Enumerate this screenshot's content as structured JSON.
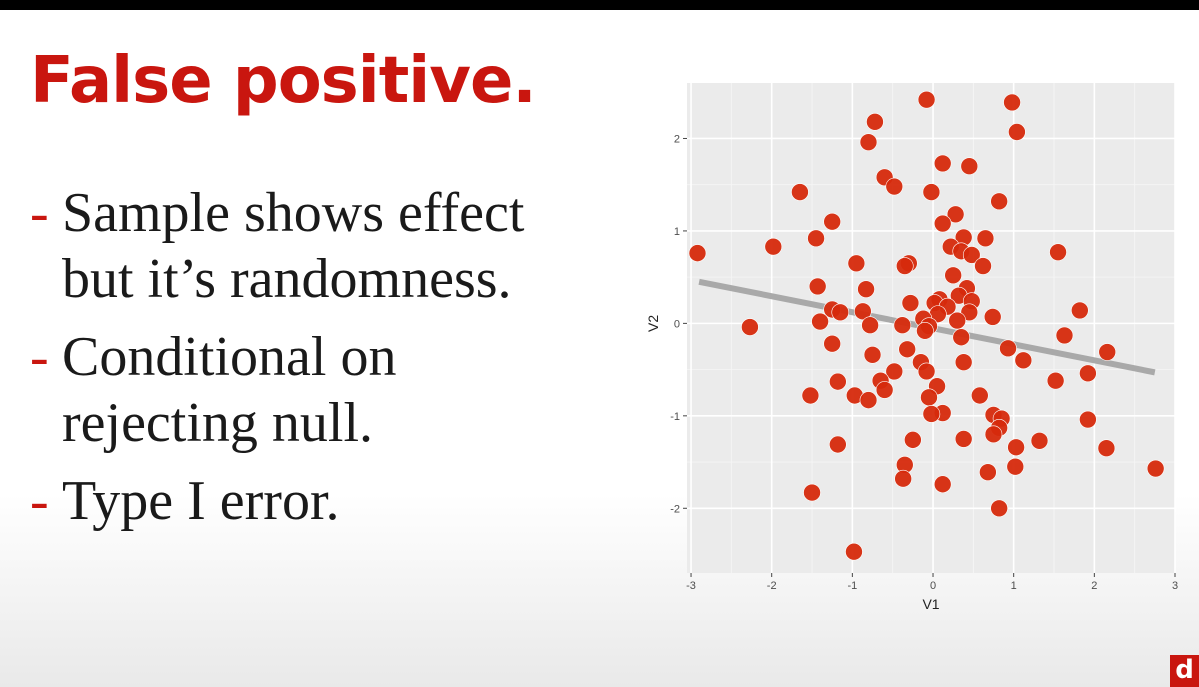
{
  "slide": {
    "title": "False positive.",
    "bullets": [
      {
        "dash": "-",
        "text": "Sample shows effect\nbut it’s randomness."
      },
      {
        "dash": "-",
        "text": "Conditional on\nrejecting null."
      },
      {
        "dash": "-",
        "text": "Type I error."
      }
    ],
    "logo_text": "d",
    "colors": {
      "title": "#c9160f",
      "dash": "#c9160f",
      "point": "#d62a0c",
      "trend": "#a9a9a9",
      "panel": "#ebebeb"
    }
  },
  "chart_data": {
    "type": "scatter",
    "title": "",
    "xlabel": "V1",
    "ylabel": "V2",
    "xlim": [
      -3.05,
      3.0
    ],
    "ylim": [
      -2.7,
      2.6
    ],
    "xticks": [
      -3,
      -2,
      -1,
      0,
      1,
      2,
      3
    ],
    "yticks": [
      -2,
      -1,
      0,
      1,
      2
    ],
    "grid": true,
    "trend_line": {
      "x": [
        -2.9,
        2.75
      ],
      "y": [
        0.45,
        -0.53
      ]
    },
    "points": [
      {
        "x": -0.08,
        "y": 2.42
      },
      {
        "x": 0.98,
        "y": 2.39
      },
      {
        "x": -0.72,
        "y": 2.18
      },
      {
        "x": 1.04,
        "y": 2.07
      },
      {
        "x": -0.8,
        "y": 1.96
      },
      {
        "x": 0.12,
        "y": 1.73
      },
      {
        "x": 0.45,
        "y": 1.7
      },
      {
        "x": -0.6,
        "y": 1.58
      },
      {
        "x": -0.48,
        "y": 1.48
      },
      {
        "x": -1.65,
        "y": 1.42
      },
      {
        "x": -0.02,
        "y": 1.42
      },
      {
        "x": 0.82,
        "y": 1.32
      },
      {
        "x": 0.28,
        "y": 1.18
      },
      {
        "x": -1.25,
        "y": 1.1
      },
      {
        "x": 0.12,
        "y": 1.08
      },
      {
        "x": -1.45,
        "y": 0.92
      },
      {
        "x": 0.38,
        "y": 0.93
      },
      {
        "x": 0.65,
        "y": 0.92
      },
      {
        "x": 0.22,
        "y": 0.83
      },
      {
        "x": -1.98,
        "y": 0.83
      },
      {
        "x": 0.35,
        "y": 0.78
      },
      {
        "x": -2.92,
        "y": 0.76
      },
      {
        "x": 1.55,
        "y": 0.77
      },
      {
        "x": 0.48,
        "y": 0.74
      },
      {
        "x": -0.95,
        "y": 0.65
      },
      {
        "x": -0.3,
        "y": 0.65
      },
      {
        "x": -0.35,
        "y": 0.62
      },
      {
        "x": 0.62,
        "y": 0.62
      },
      {
        "x": 0.25,
        "y": 0.52
      },
      {
        "x": -1.43,
        "y": 0.4
      },
      {
        "x": -0.83,
        "y": 0.37
      },
      {
        "x": 0.42,
        "y": 0.38
      },
      {
        "x": 0.32,
        "y": 0.3
      },
      {
        "x": 0.08,
        "y": 0.26
      },
      {
        "x": 0.48,
        "y": 0.24
      },
      {
        "x": -0.28,
        "y": 0.22
      },
      {
        "x": 0.02,
        "y": 0.22
      },
      {
        "x": 0.18,
        "y": 0.18
      },
      {
        "x": -1.25,
        "y": 0.15
      },
      {
        "x": -0.87,
        "y": 0.13
      },
      {
        "x": -1.15,
        "y": 0.12
      },
      {
        "x": 0.45,
        "y": 0.12
      },
      {
        "x": 1.82,
        "y": 0.14
      },
      {
        "x": 0.06,
        "y": 0.1
      },
      {
        "x": 0.74,
        "y": 0.07
      },
      {
        "x": -0.12,
        "y": 0.05
      },
      {
        "x": 0.3,
        "y": 0.03
      },
      {
        "x": -1.4,
        "y": 0.02
      },
      {
        "x": -0.78,
        "y": -0.02
      },
      {
        "x": -0.38,
        "y": -0.02
      },
      {
        "x": -0.05,
        "y": -0.03
      },
      {
        "x": -2.27,
        "y": -0.04
      },
      {
        "x": -0.1,
        "y": -0.08
      },
      {
        "x": 0.35,
        "y": -0.15
      },
      {
        "x": 1.63,
        "y": -0.13
      },
      {
        "x": -1.25,
        "y": -0.22
      },
      {
        "x": 0.93,
        "y": -0.27
      },
      {
        "x": -0.32,
        "y": -0.28
      },
      {
        "x": 2.16,
        "y": -0.31
      },
      {
        "x": -0.75,
        "y": -0.34
      },
      {
        "x": 1.12,
        "y": -0.4
      },
      {
        "x": 0.38,
        "y": -0.42
      },
      {
        "x": -0.15,
        "y": -0.42
      },
      {
        "x": -0.48,
        "y": -0.52
      },
      {
        "x": -0.08,
        "y": -0.52
      },
      {
        "x": 1.92,
        "y": -0.54
      },
      {
        "x": -1.18,
        "y": -0.63
      },
      {
        "x": -0.65,
        "y": -0.62
      },
      {
        "x": 1.52,
        "y": -0.62
      },
      {
        "x": 0.05,
        "y": -0.68
      },
      {
        "x": -0.6,
        "y": -0.72
      },
      {
        "x": -1.52,
        "y": -0.78
      },
      {
        "x": 0.58,
        "y": -0.78
      },
      {
        "x": -0.97,
        "y": -0.78
      },
      {
        "x": -0.8,
        "y": -0.83
      },
      {
        "x": -0.05,
        "y": -0.8
      },
      {
        "x": 0.12,
        "y": -0.97
      },
      {
        "x": 0.75,
        "y": -0.99
      },
      {
        "x": -0.02,
        "y": -0.98
      },
      {
        "x": 0.85,
        "y": -1.03
      },
      {
        "x": 1.92,
        "y": -1.04
      },
      {
        "x": 0.82,
        "y": -1.13
      },
      {
        "x": 0.75,
        "y": -1.2
      },
      {
        "x": 0.38,
        "y": -1.25
      },
      {
        "x": -0.25,
        "y": -1.26
      },
      {
        "x": 1.32,
        "y": -1.27
      },
      {
        "x": -1.18,
        "y": -1.31
      },
      {
        "x": 1.03,
        "y": -1.34
      },
      {
        "x": 2.15,
        "y": -1.35
      },
      {
        "x": 1.02,
        "y": -1.55
      },
      {
        "x": -0.35,
        "y": -1.53
      },
      {
        "x": 2.76,
        "y": -1.57
      },
      {
        "x": 0.68,
        "y": -1.61
      },
      {
        "x": -0.37,
        "y": -1.68
      },
      {
        "x": 0.12,
        "y": -1.74
      },
      {
        "x": -1.5,
        "y": -1.83
      },
      {
        "x": 0.82,
        "y": -2.0
      },
      {
        "x": -0.98,
        "y": -2.47
      }
    ]
  }
}
